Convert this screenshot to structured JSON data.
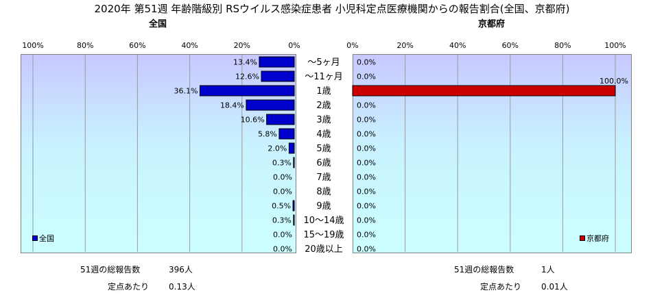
{
  "title": "2020年 第51週 年齢階級別 RSウイルス感染症患者 小児科定点医療機関からの報告割合(全国、京都府)",
  "chart_data": [
    {
      "type": "bar",
      "orientation": "horizontal",
      "direction": "right-to-left",
      "title": "全国",
      "categories": [
        "～5ヶ月",
        "～11ヶ月",
        "1歳",
        "2歳",
        "3歳",
        "4歳",
        "5歳",
        "6歳",
        "7歳",
        "8歳",
        "9歳",
        "10～14歳",
        "15～19歳",
        "20歳以上"
      ],
      "series": [
        {
          "name": "全国",
          "color": "#0000cc",
          "values": [
            13.4,
            12.6,
            36.1,
            18.4,
            10.6,
            5.8,
            2.0,
            0.3,
            0.0,
            0.0,
            0.5,
            0.3,
            0.0,
            0.0
          ],
          "labels": [
            "13.4%",
            "12.6%",
            "36.1%",
            "18.4%",
            "10.6%",
            "5.8%",
            "2.0%",
            "0.3%",
            "0.0%",
            "0.0%",
            "0.5%",
            "0.3%",
            "0.0%",
            "0.0%"
          ]
        }
      ],
      "xlim": [
        0,
        100
      ],
      "xticks": [
        "0%",
        "20%",
        "40%",
        "60%",
        "80%",
        "100%"
      ],
      "grid": true,
      "legend_position": "bottom-left"
    },
    {
      "type": "bar",
      "orientation": "horizontal",
      "direction": "left-to-right",
      "title": "京都府",
      "categories": [
        "～5ヶ月",
        "～11ヶ月",
        "1歳",
        "2歳",
        "3歳",
        "4歳",
        "5歳",
        "6歳",
        "7歳",
        "8歳",
        "9歳",
        "10～14歳",
        "15～19歳",
        "20歳以上"
      ],
      "series": [
        {
          "name": "京都府",
          "color": "#cc0000",
          "values": [
            0.0,
            0.0,
            100.0,
            0.0,
            0.0,
            0.0,
            0.0,
            0.0,
            0.0,
            0.0,
            0.0,
            0.0,
            0.0,
            0.0
          ],
          "labels": [
            "0.0%",
            "0.0%",
            "100.0%",
            "0.0%",
            "0.0%",
            "0.0%",
            "0.0%",
            "0.0%",
            "0.0%",
            "0.0%",
            "0.0%",
            "0.0%",
            "0.0%",
            "0.0%"
          ]
        }
      ],
      "xlim": [
        0,
        100
      ],
      "xticks": [
        "0%",
        "20%",
        "40%",
        "60%",
        "80%",
        "100%"
      ],
      "grid": true,
      "legend_position": "bottom-right"
    }
  ],
  "footer": {
    "left": {
      "total_label": "51週の総報告数",
      "total_value": "396人",
      "per_label": "定点あたり",
      "per_value": "0.13人"
    },
    "right": {
      "total_label": "51週の総報告数",
      "total_value": "1人",
      "per_label": "定点あたり",
      "per_value": "0.01人"
    }
  }
}
